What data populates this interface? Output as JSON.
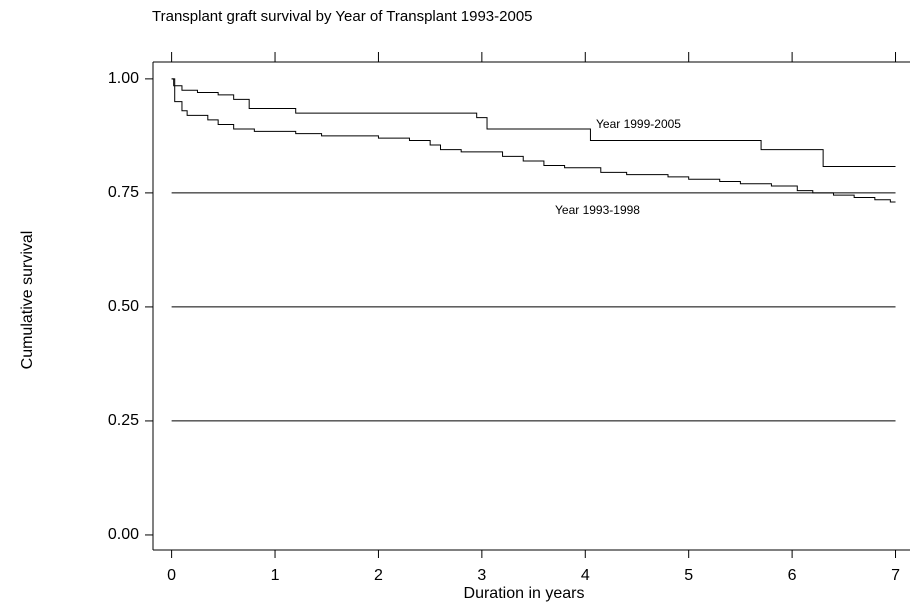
{
  "chart_data": {
    "type": "step",
    "title": "Transplant graft survival by Year of Transplant 1993-2005",
    "xlabel": "Duration in years",
    "ylabel": "Cumulative survival",
    "xlim": [
      -0.18,
      7.14
    ],
    "ylim": [
      -0.033,
      1.037
    ],
    "xticks": [
      0,
      1,
      2,
      3,
      4,
      5,
      6,
      7
    ],
    "yticks": [
      {
        "value": 0,
        "label": "0.00"
      },
      {
        "value": 0.25,
        "label": "0.25"
      },
      {
        "value": 0.5,
        "label": "0.50"
      },
      {
        "value": 0.75,
        "label": "0.75"
      },
      {
        "value": 1,
        "label": "1.00"
      }
    ],
    "hlines": [
      0.25,
      0.5,
      0.75
    ],
    "series": [
      {
        "name": "Year 1999-2005",
        "color": "#000000",
        "x": [
          0,
          0.02,
          0.1,
          0.25,
          0.45,
          0.6,
          0.75,
          1.2,
          2.95,
          3.05,
          4.05,
          5.7,
          6.3,
          7
        ],
        "values": [
          1.0,
          0.985,
          0.975,
          0.97,
          0.965,
          0.955,
          0.935,
          0.925,
          0.915,
          0.89,
          0.865,
          0.845,
          0.808,
          0.808
        ]
      },
      {
        "name": "Year 1993-1998",
        "color": "#000000",
        "x": [
          0,
          0.03,
          0.1,
          0.15,
          0.35,
          0.45,
          0.6,
          0.8,
          1.2,
          1.45,
          2.0,
          2.3,
          2.5,
          2.6,
          2.8,
          3.2,
          3.4,
          3.6,
          3.8,
          4.15,
          4.4,
          4.8,
          5.0,
          5.3,
          5.5,
          5.8,
          6.05,
          6.2,
          6.4,
          6.6,
          6.8,
          6.95,
          7
        ],
        "values": [
          1.0,
          0.95,
          0.93,
          0.92,
          0.91,
          0.9,
          0.89,
          0.885,
          0.88,
          0.875,
          0.87,
          0.865,
          0.855,
          0.845,
          0.84,
          0.83,
          0.82,
          0.81,
          0.805,
          0.795,
          0.79,
          0.785,
          0.78,
          0.775,
          0.77,
          0.765,
          0.755,
          0.75,
          0.745,
          0.74,
          0.735,
          0.73,
          0.73
        ]
      }
    ]
  }
}
